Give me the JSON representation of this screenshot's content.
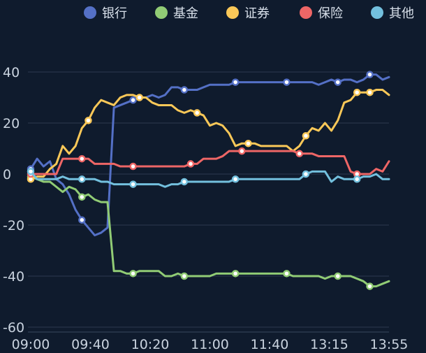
{
  "chart_data": {
    "type": "line",
    "legend_position": "top-right",
    "grid": true,
    "ylim": [
      -60,
      40
    ],
    "y_ticks": [
      "40",
      "20",
      "0",
      "-20",
      "-40",
      "-60"
    ],
    "x_ticks": [
      "09:00",
      "09:40",
      "10:20",
      "11:00",
      "11:40",
      "13:15",
      "13:55"
    ],
    "series": [
      {
        "name": "银行",
        "color": "#5470c6",
        "values": [
          2,
          6,
          3,
          5,
          -2,
          -4,
          -8,
          -14,
          -18,
          -21,
          -24,
          -23,
          -21,
          26,
          27,
          28,
          29,
          30,
          30,
          31,
          30,
          31,
          34,
          34,
          33,
          33,
          33,
          34,
          35,
          35,
          35,
          35,
          36,
          36,
          36,
          36,
          36,
          36,
          36,
          36,
          36,
          36,
          36,
          36,
          36,
          35,
          36,
          37,
          36,
          37,
          37,
          36,
          37,
          39,
          39,
          37,
          38
        ],
        "markers": [
          0,
          8,
          16,
          24,
          32,
          40,
          48,
          53
        ]
      },
      {
        "name": "基金",
        "color": "#91cc75",
        "values": [
          -1,
          -2,
          -3,
          -3,
          -5,
          -7,
          -5,
          -6,
          -9,
          -8,
          -10,
          -11,
          -11,
          -38,
          -38,
          -39,
          -39,
          -38,
          -38,
          -38,
          -38,
          -40,
          -40,
          -39,
          -40,
          -40,
          -40,
          -40,
          -40,
          -39,
          -39,
          -39,
          -39,
          -39,
          -39,
          -39,
          -39,
          -39,
          -39,
          -39,
          -39,
          -40,
          -40,
          -40,
          -40,
          -40,
          -41,
          -40,
          -40,
          -40,
          -40,
          -41,
          -42,
          -44,
          -44,
          -43,
          -42
        ],
        "markers": [
          0,
          8,
          16,
          24,
          32,
          40,
          48,
          53
        ]
      },
      {
        "name": "证券",
        "color": "#fac858",
        "values": [
          -2,
          -1,
          -1,
          2,
          4,
          11,
          8,
          11,
          18,
          21,
          26,
          29,
          28,
          27,
          30,
          31,
          31,
          30,
          30,
          28,
          27,
          27,
          27,
          25,
          24,
          25,
          24,
          23,
          19,
          20,
          19,
          16,
          11,
          12,
          12,
          12,
          11,
          11,
          11,
          11,
          11,
          9,
          11,
          15,
          18,
          17,
          20,
          17,
          21,
          28,
          29,
          32,
          32,
          32,
          33,
          33,
          31
        ],
        "markers": [
          0,
          9,
          17,
          26,
          34,
          43,
          51,
          53
        ]
      },
      {
        "name": "保险",
        "color": "#ee6666",
        "values": [
          0,
          0,
          0,
          0,
          0,
          6,
          6,
          6,
          6,
          6,
          4,
          4,
          4,
          4,
          3,
          3,
          3,
          3,
          3,
          3,
          3,
          3,
          3,
          3,
          3,
          4,
          4,
          6,
          6,
          6,
          7,
          9,
          9,
          9,
          9,
          9,
          9,
          9,
          9,
          9,
          9,
          9,
          8,
          8,
          8,
          7,
          7,
          7,
          7,
          7,
          1,
          0,
          0,
          0,
          2,
          1,
          5
        ],
        "markers": [
          0,
          8,
          16,
          25,
          33,
          42,
          51
        ]
      },
      {
        "name": "其他",
        "color": "#73c0de",
        "values": [
          1,
          -2,
          -2,
          -2,
          -2,
          -1,
          -2,
          -2,
          -2,
          -2,
          -2,
          -3,
          -3,
          -4,
          -4,
          -4,
          -4,
          -4,
          -4,
          -4,
          -4,
          -5,
          -4,
          -4,
          -3,
          -3,
          -3,
          -3,
          -3,
          -3,
          -3,
          -3,
          -2,
          -2,
          -2,
          -2,
          -2,
          -2,
          -2,
          -2,
          -2,
          -2,
          -2,
          0,
          1,
          1,
          1,
          -3,
          -1,
          -2,
          -2,
          -2,
          -1,
          -1,
          0,
          -2,
          -2
        ],
        "markers": [
          0,
          8,
          16,
          24,
          32,
          43,
          51
        ]
      }
    ]
  }
}
